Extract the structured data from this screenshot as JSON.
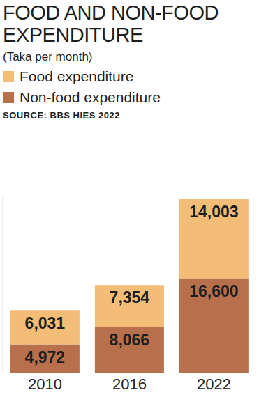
{
  "chart_data": {
    "type": "bar",
    "title": "FOOD AND NON-FOOD EXPENDITURE",
    "subtitle": "(Taka per month)",
    "source": "SOURCE: BBS HIES 2022",
    "categories": [
      "2010",
      "2016",
      "2022"
    ],
    "series": [
      {
        "name": "Food expenditure",
        "color": "#f4bd77",
        "values": [
          6031,
          7354,
          14003
        ],
        "value_labels": [
          "6,031",
          "7,354",
          "14,003"
        ]
      },
      {
        "name": "Non-food expenditure",
        "color": "#b8704c",
        "values": [
          4972,
          8066,
          16600
        ],
        "value_labels": [
          "4,972",
          "8,066",
          "16,600"
        ]
      }
    ],
    "stacked": true,
    "data_labels": true,
    "tick_labels": "x",
    "grid": false,
    "ylim": [
      0,
      31000
    ],
    "yticks": []
  }
}
